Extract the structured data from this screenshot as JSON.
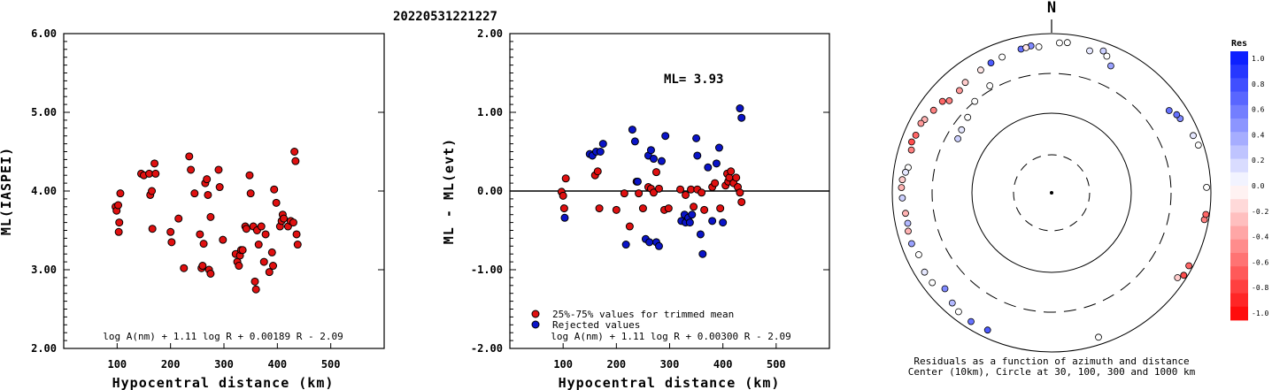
{
  "title": "20220531221227",
  "colors": {
    "red_point": "#e01010",
    "blue_point": "#0a14c8",
    "frame": "#000000"
  },
  "panel1": {
    "ylabel": "ML(IASPEI)",
    "xlabel": "Hypocentral distance (km)",
    "xticks": [
      "100",
      "200",
      "300",
      "400",
      "500"
    ],
    "yticks": [
      "2.00",
      "3.00",
      "4.00",
      "5.00",
      "6.00"
    ],
    "formula": "log A(nm) + 1.11 log R + 0.00189 R - 2.09"
  },
  "panel2": {
    "ylabel": "ML - ML(evt)",
    "xlabel": "Hypocentral distance (km)",
    "xticks": [
      "100",
      "200",
      "300",
      "400",
      "500"
    ],
    "yticks": [
      "-2.00",
      "-1.00",
      "0.00",
      "1.00",
      "2.00"
    ],
    "ml_label": "ML= 3.93",
    "legend_red": "25%-75% values for trimmed mean",
    "legend_blue": "Rejected values",
    "formula": "log A(nm) + 1.11 log R + 0.00300 R - 2.09"
  },
  "panel3": {
    "north": "N",
    "caption1": "Residuals as a function of azimuth and distance",
    "caption2": "Center (10km), Circle at 30, 100, 300 and 1000 km",
    "colorbar_title": "Res",
    "colorbar_ticks": [
      "1.0",
      "0.8",
      "0.6",
      "0.4",
      "0.2",
      "0.0",
      "-0.2",
      "-0.4",
      "-0.6",
      "-0.8",
      "-1.0"
    ]
  },
  "chart_data": [
    {
      "type": "scatter",
      "title": "20220531221227",
      "xlabel": "Hypocentral distance (km)",
      "ylabel": "ML(IASPEI)",
      "xlim": [
        0,
        600
      ],
      "ylim": [
        2,
        6
      ],
      "series": [
        {
          "points": [
            [
              97,
              3.8
            ],
            [
              99,
              3.75
            ],
            [
              102,
              3.82
            ],
            [
              104,
              3.6
            ],
            [
              103,
              3.48
            ],
            [
              106,
              3.97
            ],
            [
              145,
              4.22
            ],
            [
              150,
              4.2
            ],
            [
              162,
              3.95
            ],
            [
              165,
              4.0
            ],
            [
              166,
              3.52
            ],
            [
              170,
              4.35
            ],
            [
              160,
              4.22
            ],
            [
              172,
              4.22
            ],
            [
              200,
              3.48
            ],
            [
              202,
              3.35
            ],
            [
              215,
              3.65
            ],
            [
              225,
              3.02
            ],
            [
              235,
              4.44
            ],
            [
              238,
              4.27
            ],
            [
              245,
              3.97
            ],
            [
              255,
              3.45
            ],
            [
              258,
              3.02
            ],
            [
              260,
              3.05
            ],
            [
              262,
              3.33
            ],
            [
              265,
              4.1
            ],
            [
              268,
              4.15
            ],
            [
              270,
              3.95
            ],
            [
              272,
              3.0
            ],
            [
              275,
              3.67
            ],
            [
              275,
              2.95
            ],
            [
              290,
              4.27
            ],
            [
              292,
              4.05
            ],
            [
              298,
              3.38
            ],
            [
              322,
              3.2
            ],
            [
              325,
              3.1
            ],
            [
              328,
              3.05
            ],
            [
              330,
              3.18
            ],
            [
              332,
              3.25
            ],
            [
              335,
              3.25
            ],
            [
              340,
              3.55
            ],
            [
              342,
              3.52
            ],
            [
              348,
              4.2
            ],
            [
              350,
              3.97
            ],
            [
              355,
              3.55
            ],
            [
              358,
              2.85
            ],
            [
              360,
              2.75
            ],
            [
              362,
              3.5
            ],
            [
              365,
              3.32
            ],
            [
              370,
              3.55
            ],
            [
              375,
              3.1
            ],
            [
              378,
              3.45
            ],
            [
              385,
              2.97
            ],
            [
              390,
              3.22
            ],
            [
              392,
              3.05
            ],
            [
              394,
              4.02
            ],
            [
              398,
              3.85
            ],
            [
              405,
              3.55
            ],
            [
              408,
              3.62
            ],
            [
              410,
              3.7
            ],
            [
              412,
              3.65
            ],
            [
              420,
              3.55
            ],
            [
              425,
              3.62
            ],
            [
              430,
              3.6
            ],
            [
              432,
              4.5
            ],
            [
              434,
              4.38
            ],
            [
              436,
              3.45
            ],
            [
              438,
              3.32
            ]
          ]
        }
      ]
    },
    {
      "type": "scatter",
      "xlabel": "Hypocentral distance (km)",
      "ylabel": "ML - ML(evt)",
      "xlim": [
        0,
        600
      ],
      "ylim": [
        -2,
        2
      ],
      "annotation": "ML= 3.93",
      "series": [
        {
          "name": "25%-75% values for trimmed mean",
          "points": [
            [
              97,
              -0.01
            ],
            [
              100,
              -0.06
            ],
            [
              102,
              -0.22
            ],
            [
              105,
              0.16
            ],
            [
              160,
              0.2
            ],
            [
              165,
              0.25
            ],
            [
              168,
              -0.22
            ],
            [
              200,
              -0.24
            ],
            [
              215,
              -0.03
            ],
            [
              225,
              -0.45
            ],
            [
              238,
              0.12
            ],
            [
              242,
              -0.03
            ],
            [
              250,
              -0.22
            ],
            [
              260,
              0.05
            ],
            [
              265,
              0.03
            ],
            [
              270,
              -0.02
            ],
            [
              275,
              0.24
            ],
            [
              280,
              0.03
            ],
            [
              290,
              -0.24
            ],
            [
              298,
              -0.22
            ],
            [
              320,
              0.02
            ],
            [
              330,
              -0.05
            ],
            [
              340,
              0.02
            ],
            [
              345,
              -0.2
            ],
            [
              352,
              0.02
            ],
            [
              360,
              -0.02
            ],
            [
              365,
              -0.24
            ],
            [
              380,
              0.05
            ],
            [
              385,
              0.1
            ],
            [
              395,
              -0.22
            ],
            [
              405,
              0.07
            ],
            [
              408,
              0.22
            ],
            [
              410,
              0.12
            ],
            [
              412,
              0.17
            ],
            [
              415,
              0.25
            ],
            [
              420,
              0.1
            ],
            [
              425,
              0.17
            ],
            [
              428,
              0.05
            ],
            [
              432,
              -0.02
            ],
            [
              435,
              -0.14
            ]
          ]
        },
        {
          "name": "Rejected values",
          "points": [
            [
              103,
              -0.34
            ],
            [
              150,
              0.47
            ],
            [
              155,
              0.45
            ],
            [
              162,
              0.5
            ],
            [
              170,
              0.5
            ],
            [
              175,
              0.6
            ],
            [
              218,
              -0.68
            ],
            [
              230,
              0.78
            ],
            [
              235,
              0.63
            ],
            [
              240,
              0.12
            ],
            [
              255,
              -0.61
            ],
            [
              260,
              0.45
            ],
            [
              262,
              -0.65
            ],
            [
              265,
              0.52
            ],
            [
              270,
              0.41
            ],
            [
              275,
              -0.65
            ],
            [
              280,
              -0.7
            ],
            [
              285,
              0.38
            ],
            [
              292,
              0.7
            ],
            [
              322,
              -0.38
            ],
            [
              328,
              -0.3
            ],
            [
              330,
              -0.4
            ],
            [
              335,
              -0.34
            ],
            [
              338,
              -0.4
            ],
            [
              342,
              -0.3
            ],
            [
              350,
              0.67
            ],
            [
              352,
              0.45
            ],
            [
              358,
              -0.55
            ],
            [
              362,
              -0.8
            ],
            [
              372,
              0.3
            ],
            [
              380,
              -0.38
            ],
            [
              388,
              0.35
            ],
            [
              393,
              0.55
            ],
            [
              400,
              -0.4
            ],
            [
              432,
              1.05
            ],
            [
              435,
              0.93
            ]
          ]
        }
      ]
    },
    {
      "type": "scatter",
      "title": "Residuals as a function of azimuth and distance",
      "annotation": "Center (10km), Circle at 30, 100, 300 and 1000 km",
      "scale": "log radial distance, azimuth clockwise from north",
      "colorbar": {
        "label": "Res",
        "range": [
          -1.0,
          1.0
        ],
        "negative_color": "red",
        "positive_color": "blue"
      },
      "points_az_dist_res": [
        [
          3,
          760,
          0.0
        ],
        [
          6,
          780,
          0.0
        ],
        [
          352,
          720,
          0.5
        ],
        [
          348,
          690,
          0.6
        ],
        [
          355,
          680,
          0.0
        ],
        [
          340,
          640,
          0.0
        ],
        [
          335,
          620,
          0.7
        ],
        [
          330,
          590,
          -0.1
        ],
        [
          322,
          560,
          -0.2
        ],
        [
          318,
          520,
          -0.4
        ],
        [
          312,
          520,
          -0.5
        ],
        [
          310,
          600,
          -0.6
        ],
        [
          305,
          630,
          -0.5
        ],
        [
          300,
          680,
          -0.3
        ],
        [
          298,
          710,
          -0.4
        ],
        [
          293,
          700,
          -0.6
        ],
        [
          290,
          730,
          -0.7
        ],
        [
          287,
          680,
          -0.5
        ],
        [
          330,
          340,
          0.0
        ],
        [
          320,
          300,
          0.0
        ],
        [
          312,
          250,
          0.0
        ],
        [
          305,
          230,
          0.1
        ],
        [
          300,
          220,
          0.2
        ],
        [
          280,
          660,
          0.0
        ],
        [
          278,
          700,
          0.1
        ],
        [
          275,
          750,
          -0.2
        ],
        [
          272,
          760,
          -0.3
        ],
        [
          268,
          740,
          0.2
        ],
        [
          262,
          700,
          -0.3
        ],
        [
          258,
          690,
          0.3
        ],
        [
          255,
          720,
          -0.3
        ],
        [
          250,
          730,
          0.4
        ],
        [
          245,
          680,
          0.0
        ],
        [
          238,
          750,
          0.1
        ],
        [
          233,
          740,
          0.0
        ],
        [
          228,
          620,
          0.5
        ],
        [
          222,
          720,
          0.3
        ],
        [
          218,
          780,
          0.0
        ],
        [
          212,
          800,
          0.6
        ],
        [
          205,
          790,
          0.7
        ],
        [
          162,
          800,
          0.0
        ],
        [
          122,
          900,
          -0.7
        ],
        [
          118,
          890,
          -0.6
        ],
        [
          124,
          800,
          -0.2
        ],
        [
          100,
          880,
          -0.5
        ],
        [
          98,
          900,
          -0.6
        ],
        [
          88,
          880,
          0.0
        ],
        [
          72,
          860,
          0.0
        ],
        [
          68,
          820,
          0.1
        ],
        [
          60,
          720,
          0.5
        ],
        [
          58,
          700,
          0.6
        ],
        [
          55,
          620,
          0.6
        ],
        [
          20,
          780,
          0.2
        ],
        [
          22,
          700,
          0.0
        ],
        [
          25,
          560,
          0.4
        ],
        [
          15,
          690,
          0.1
        ],
        [
          350,
          700,
          -0.1
        ]
      ]
    }
  ]
}
